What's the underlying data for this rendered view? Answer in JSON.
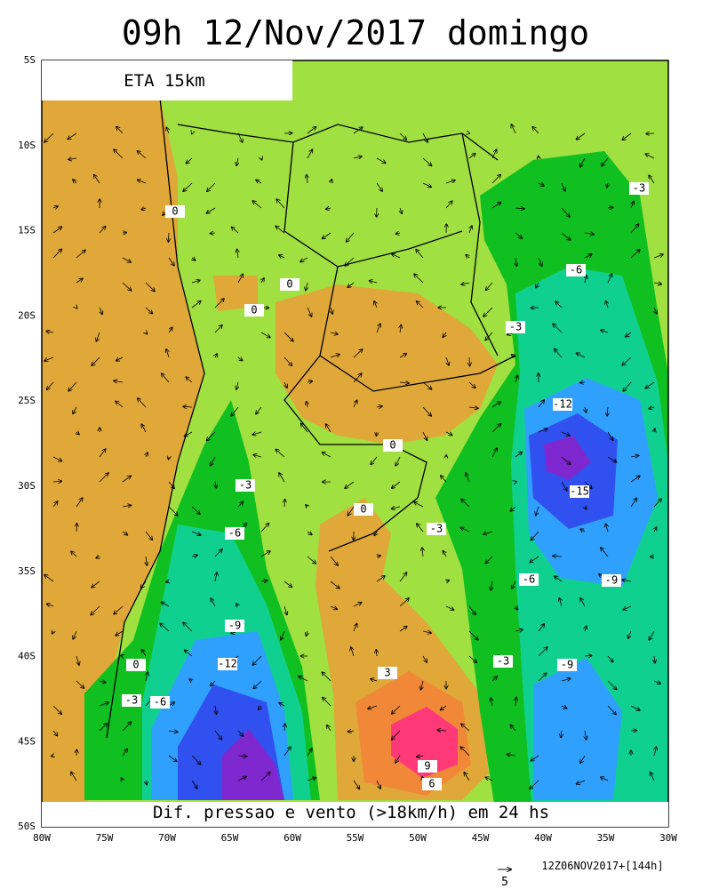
{
  "title": "09h 12/Nov/2017 domingo",
  "model_label": "ETA 15km",
  "caption": "Dif. pressao e vento (>18km/h) em 24 hs",
  "run_label": "12Z06NOV2017+[144h]",
  "vector_scale": "5",
  "lat_labels": [
    "5S",
    "10S",
    "15S",
    "20S",
    "25S",
    "30S",
    "35S",
    "40S",
    "45S",
    "50S"
  ],
  "lon_labels": [
    "80W",
    "75W",
    "70W",
    "65W",
    "60W",
    "55W",
    "50W",
    "45W",
    "40W",
    "35W",
    "30W"
  ],
  "contour_labels": [
    "0",
    "0",
    "0",
    "-3",
    "0",
    "0",
    "-3",
    "-6",
    "-9",
    "-12",
    "-15",
    "-3",
    "-3",
    "-6",
    "-6",
    "-9",
    "-3",
    "-9",
    "-12",
    "-3",
    "-6",
    "0",
    "3",
    "9",
    "6"
  ]
}
